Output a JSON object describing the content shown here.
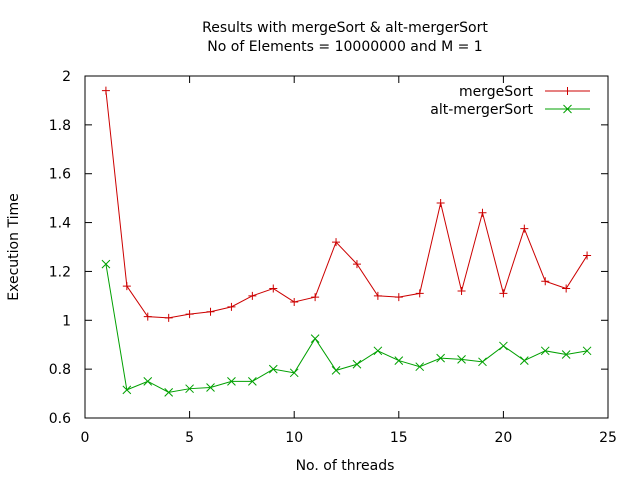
{
  "chart_data": {
    "type": "line",
    "title": "Results with mergeSort & alt-mergerSort",
    "subtitle": "No of Elements = 10000000 and M = 1",
    "xlabel": "No. of threads",
    "ylabel": "Execution Time",
    "xlim": [
      0,
      25
    ],
    "ylim": [
      0.6,
      2
    ],
    "x_ticks": [
      0,
      5,
      10,
      15,
      20,
      25
    ],
    "y_ticks": [
      0.6,
      0.8,
      1,
      1.2,
      1.4,
      1.6,
      1.8,
      2
    ],
    "x_tick_labels": [
      "0",
      "5",
      "10",
      "15",
      "20",
      "25"
    ],
    "y_tick_labels": [
      "0.6",
      "0.8",
      "1",
      "1.2",
      "1.4",
      "1.6",
      "1.8",
      "2"
    ],
    "grid": false,
    "legend_position": "top-right",
    "x": [
      1,
      2,
      3,
      4,
      5,
      6,
      7,
      8,
      9,
      10,
      11,
      12,
      13,
      14,
      15,
      16,
      17,
      18,
      19,
      20,
      21,
      22,
      23,
      24
    ],
    "series": [
      {
        "name": "mergeSort",
        "color": "#cc0000",
        "marker": "plus",
        "values": [
          1.94,
          1.14,
          1.015,
          1.01,
          1.025,
          1.035,
          1.055,
          1.1,
          1.13,
          1.075,
          1.095,
          1.32,
          1.23,
          1.1,
          1.095,
          1.11,
          1.48,
          1.12,
          1.44,
          1.11,
          1.375,
          1.16,
          1.13,
          1.265
        ]
      },
      {
        "name": "alt-mergerSort",
        "color": "#00a000",
        "marker": "cross",
        "values": [
          1.23,
          0.715,
          0.75,
          0.705,
          0.72,
          0.725,
          0.75,
          0.75,
          0.8,
          0.785,
          0.925,
          0.795,
          0.82,
          0.875,
          0.835,
          0.81,
          0.845,
          0.84,
          0.83,
          0.895,
          0.835,
          0.875,
          0.86,
          0.875
        ]
      }
    ]
  }
}
